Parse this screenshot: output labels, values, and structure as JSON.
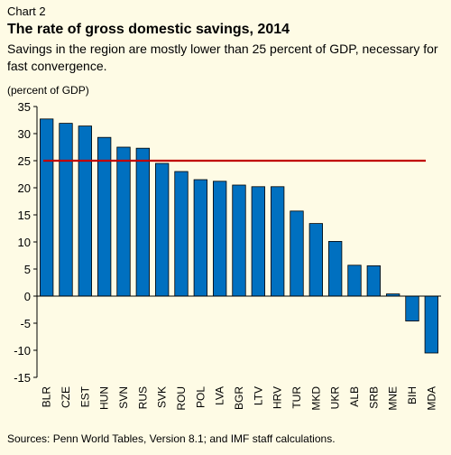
{
  "header": {
    "chart_label": "Chart 2",
    "title": "The rate of gross domestic savings, 2014",
    "subtitle": "Savings in the region are mostly lower than 25 percent of GDP, necessary for fast convergence.",
    "unit": "(percent of GDP)"
  },
  "footer": {
    "source": "Sources: Penn World Tables, Version 8.1; and IMF staff calculations."
  },
  "chart_data": {
    "type": "bar",
    "title": "The rate of gross domestic savings, 2014",
    "ylabel": "(percent of GDP)",
    "categories": [
      "BLR",
      "CZE",
      "EST",
      "HUN",
      "SVN",
      "RUS",
      "SVK",
      "ROU",
      "POL",
      "LVA",
      "BGR",
      "LTV",
      "HRV",
      "TUR",
      "MKD",
      "UKR",
      "ALB",
      "SRB",
      "MNE",
      "BIH",
      "MDA"
    ],
    "values": [
      32.7,
      31.9,
      31.4,
      29.3,
      27.5,
      27.3,
      24.5,
      23.0,
      21.5,
      21.2,
      20.5,
      20.2,
      20.2,
      15.7,
      13.4,
      10.1,
      5.7,
      5.6,
      0.4,
      -4.6,
      -10.5
    ],
    "reference_line": {
      "value": 25,
      "color": "#c00000"
    },
    "ylim": [
      -15,
      35
    ],
    "yticks": [
      -15,
      -10,
      -5,
      0,
      5,
      10,
      15,
      20,
      25,
      30,
      35
    ],
    "bar_color": "#0070c0",
    "background": "#fefbe5",
    "grid": false,
    "legend": "none"
  }
}
